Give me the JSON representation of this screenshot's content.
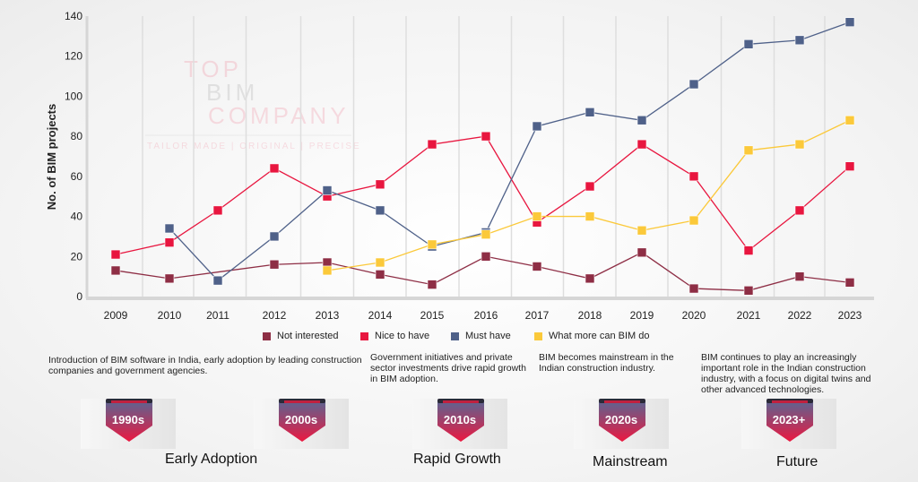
{
  "chart_data": {
    "type": "line",
    "title": "",
    "xlabel": "",
    "ylabel": "No. of BIM projects",
    "ylim": [
      0,
      140
    ],
    "yticks": [
      0,
      20,
      40,
      60,
      80,
      100,
      120,
      140
    ],
    "x": [
      "2009",
      "2010",
      "2011",
      "2012",
      "2013",
      "2014",
      "2015",
      "2016",
      "2017",
      "2018",
      "2019",
      "2020",
      "2021",
      "2022",
      "2023"
    ],
    "grid": "vertical",
    "legend_position": "bottom",
    "series": [
      {
        "name": "Not interested",
        "color": "#8e2e45",
        "values": [
          13,
          9,
          null,
          16,
          17,
          11,
          6,
          20,
          15,
          9,
          22,
          4,
          3,
          10,
          7
        ]
      },
      {
        "name": "Nice to have",
        "color": "#e8163f",
        "values": [
          21,
          27,
          43,
          64,
          50,
          56,
          76,
          80,
          37,
          55,
          76,
          60,
          23,
          43,
          65
        ]
      },
      {
        "name": "Must have",
        "color": "#4f6189",
        "values": [
          null,
          34,
          8,
          30,
          53,
          43,
          25,
          32,
          85,
          92,
          88,
          106,
          126,
          128,
          137
        ]
      },
      {
        "name": "What more can BIM do",
        "color": "#fbc93a",
        "values": [
          null,
          null,
          null,
          null,
          13,
          17,
          26,
          31,
          40,
          40,
          33,
          38,
          73,
          76,
          88
        ]
      }
    ]
  },
  "watermark": {
    "line1": "TOP",
    "line2": "BIM",
    "line3": "COMPANY",
    "tagline": "TAILOR MADE | ORIGINAL | PRECISE"
  },
  "timeline": {
    "descriptions": [
      "Introduction of BIM software in India, early adoption by leading construction companies and government agencies.",
      "Government initiatives and private sector investments drive rapid growth in BIM adoption.",
      "BIM becomes mainstream in the Indian construction industry.",
      "BIM continues to play an increasingly important role in the Indian construction industry, with a focus on digital twins and other advanced technologies."
    ],
    "badges": [
      "1990s",
      "2000s",
      "2010s",
      "2020s",
      "2023+"
    ],
    "phases": [
      "Early Adoption",
      "Rapid Growth",
      "Mainstream",
      "Future"
    ]
  }
}
